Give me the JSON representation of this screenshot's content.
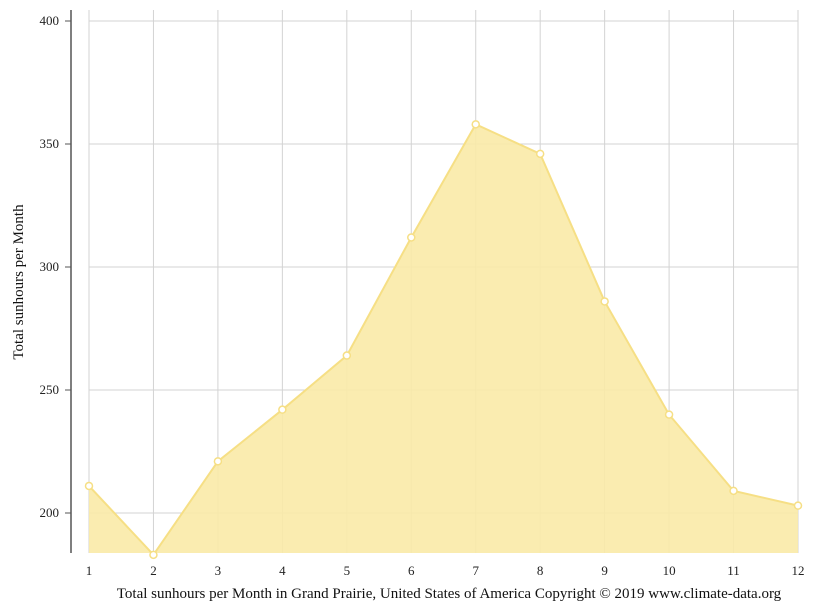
{
  "chart_data": {
    "type": "area",
    "x": [
      1,
      2,
      3,
      4,
      5,
      6,
      7,
      8,
      9,
      10,
      11,
      12
    ],
    "series": [
      {
        "values": [
          211,
          183,
          221,
          242,
          264,
          312,
          358,
          346,
          286,
          240,
          209,
          203
        ]
      }
    ],
    "xticks": [
      "1",
      "2",
      "3",
      "4",
      "5",
      "6",
      "7",
      "8",
      "9",
      "10",
      "11",
      "12"
    ],
    "yticks": [
      "200",
      "250",
      "300",
      "350",
      "400"
    ],
    "ylim": [
      183,
      405
    ],
    "xlim": [
      1,
      12
    ],
    "ylabel": "Total sunhours per Month",
    "xlabel": "Total sunhours per Month in Grand Prairie, United States of America Copyright © 2019 www.climate-data.org",
    "grid": true,
    "colors": {
      "fill": "#f9eaa7",
      "stroke": "#f6df85",
      "marker_fill": "#ffffff",
      "grid": "#d3d3d3",
      "axis": "#555555"
    }
  }
}
